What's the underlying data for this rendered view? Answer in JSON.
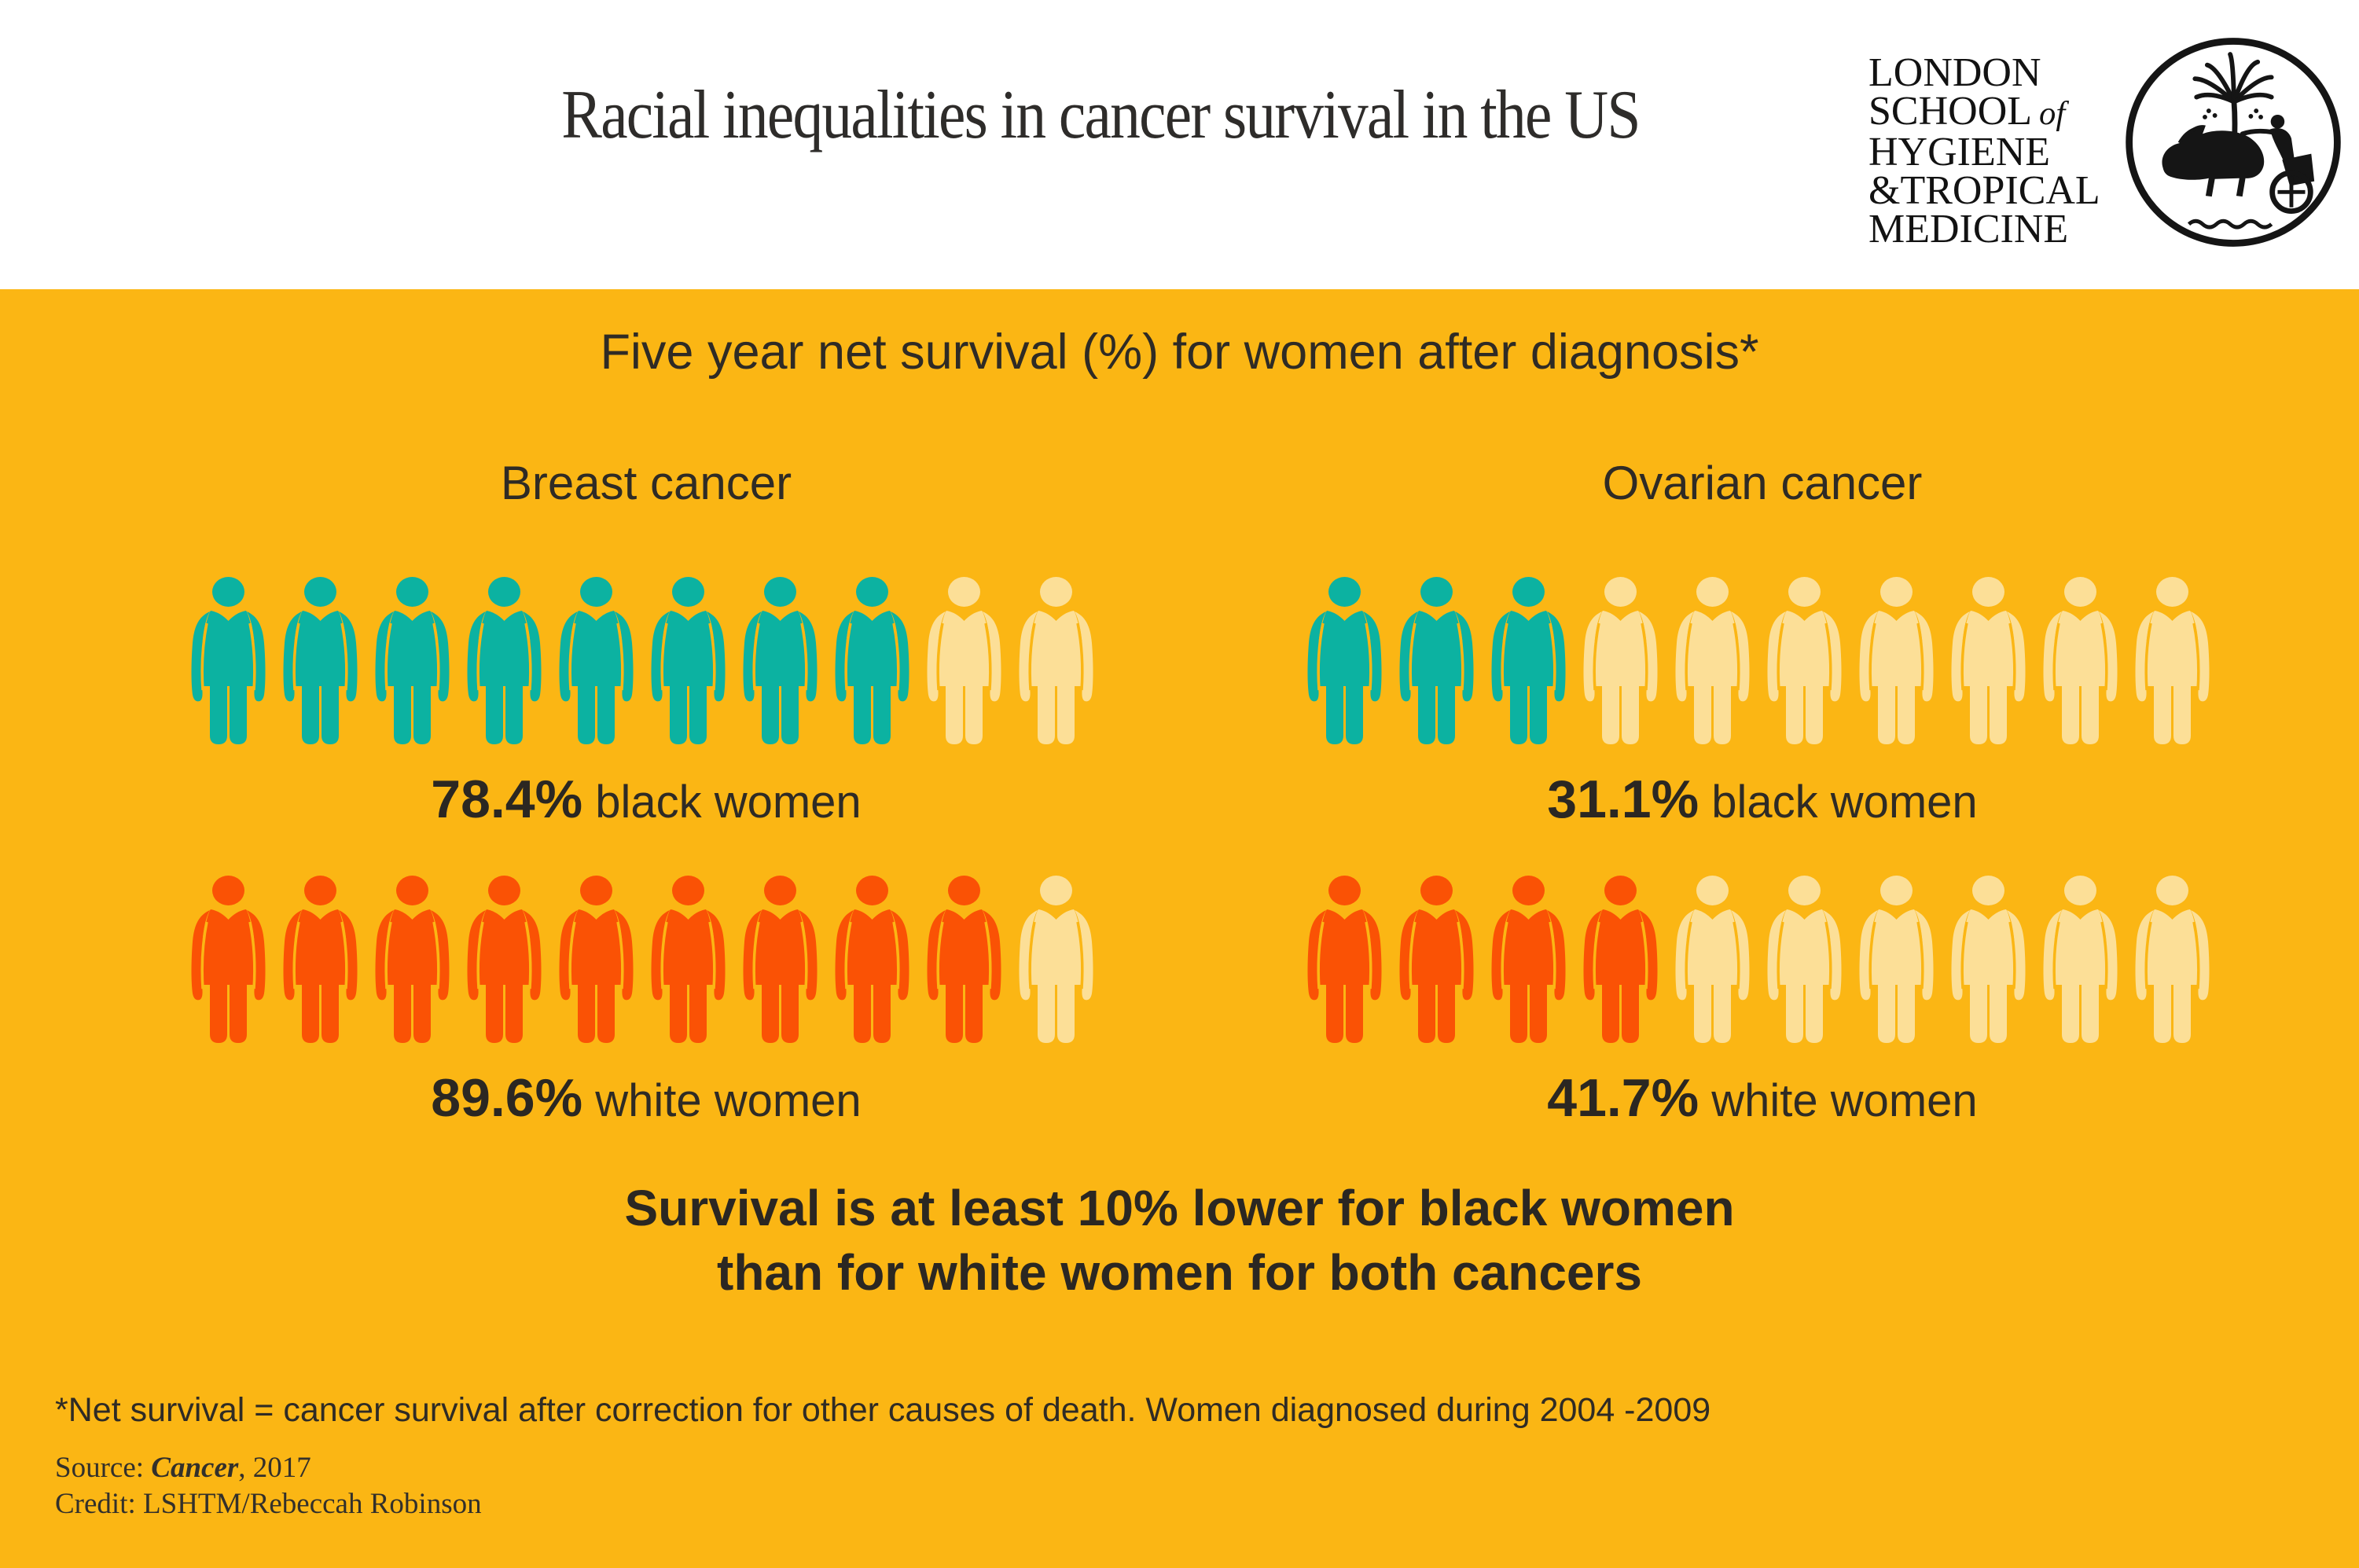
{
  "header": {
    "title": "Racial inequalities in cancer survival in the US",
    "logo": {
      "line1": "LONDON",
      "line2a": "SCHOOL",
      "line2b": "of",
      "line3": "HYGIENE",
      "line4_amp": "&",
      "line4": "TROPICAL",
      "line5": "MEDICINE"
    }
  },
  "board": {
    "subtitle": "Five year net survival (%) for women after diagnosis*",
    "message_line1": "Survival is at least 10% lower for black women",
    "message_line2": "than for white women for both cancers",
    "footnote": "*Net survival = cancer survival after correction for other causes of death. Women diagnosed during 2004 -2009",
    "source_prefix": "Source: ",
    "source_title": "Cancer",
    "source_suffix": ", 2017",
    "credit": "Credit: LSHTM/Rebeccah Robinson"
  },
  "colors": {
    "board_background": "#FBB614",
    "teal_black_women": "#0CB2A1",
    "orange_white_women": "#FA5205",
    "unfilled_icon": "#FCDF97",
    "dark_text": "#2F2B25"
  },
  "chart_data": {
    "type": "bar",
    "variant": "icon-array pictogram, 10 woman icons per row, 1 icon = 10 percentage points",
    "title": "Five year net survival (%) for women after diagnosis*",
    "categories": [
      "Breast cancer",
      "Ovarian cancer"
    ],
    "series": [
      {
        "name": "black women",
        "values": [
          78.4,
          31.1
        ],
        "filled_icons": [
          8,
          3
        ],
        "color": "#0CB2A1"
      },
      {
        "name": "white women",
        "values": [
          89.6,
          41.7
        ],
        "filled_icons": [
          9,
          4
        ],
        "color": "#FA5205"
      }
    ],
    "icons_per_row": 10,
    "value_suffix": "%",
    "legend_position": "inline-below-rows",
    "grid": false
  }
}
